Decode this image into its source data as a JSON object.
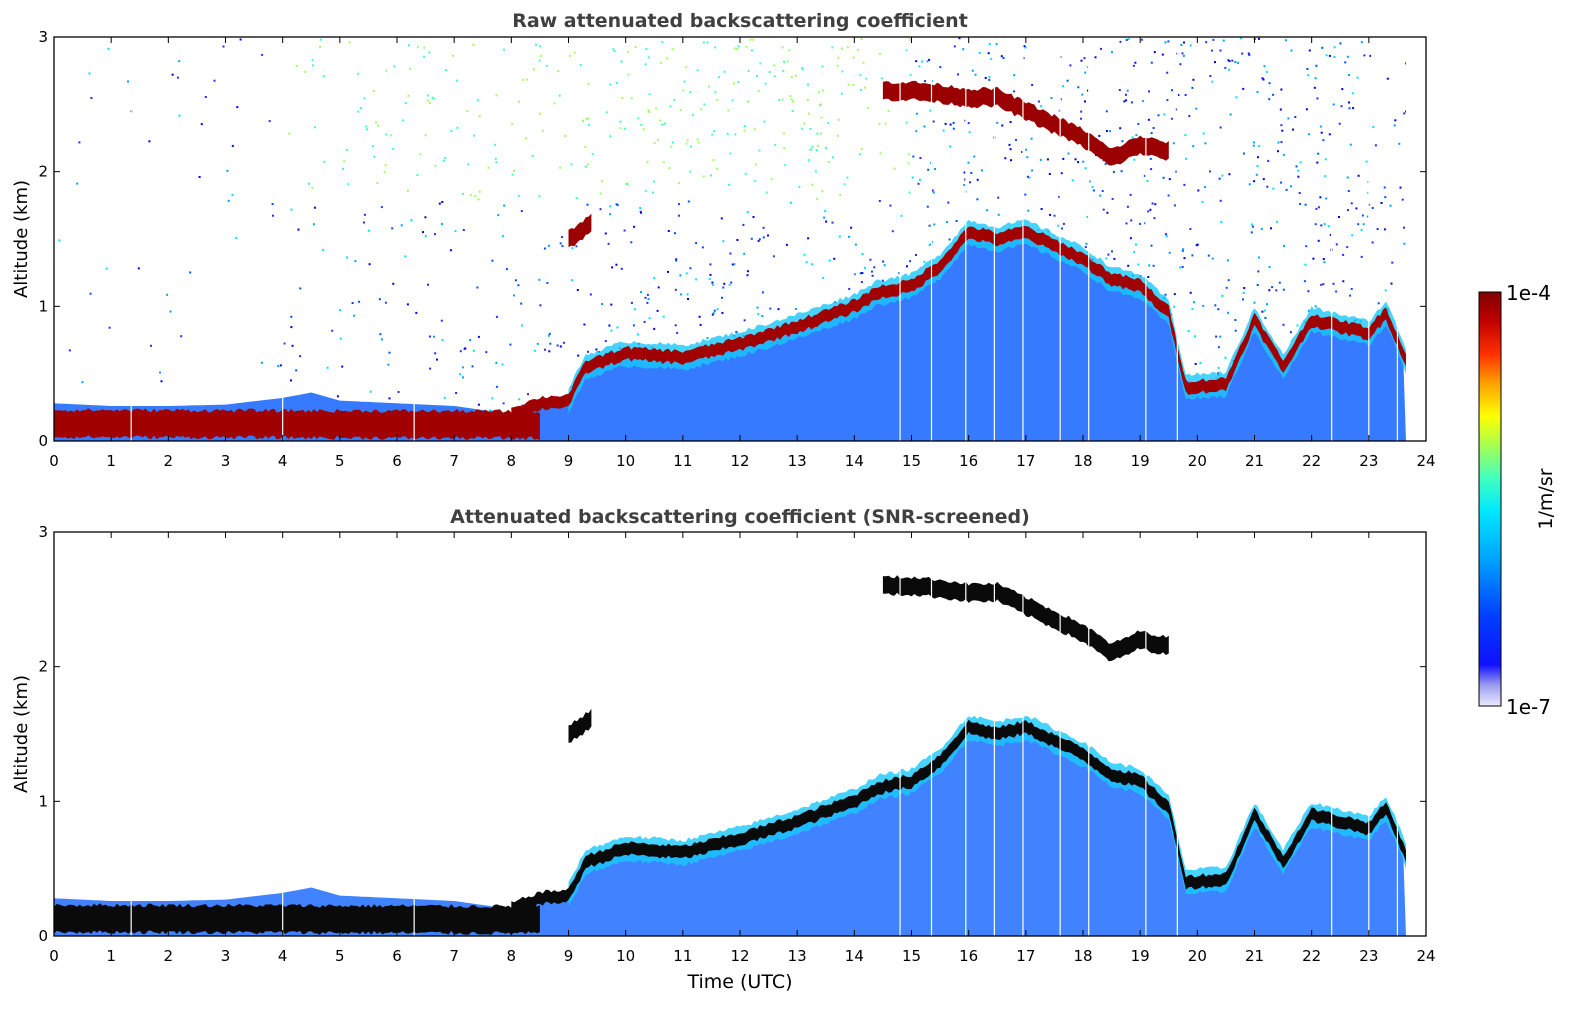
{
  "chart_data": [
    {
      "type": "heatmap",
      "title": "Raw attenuated backscattering coefficient",
      "xlabel": "",
      "ylabel": "Altitude (km)",
      "xlim": [
        0,
        24
      ],
      "ylim": [
        0,
        3
      ],
      "xticks": [
        "0",
        "1",
        "2",
        "3",
        "4",
        "5",
        "6",
        "7",
        "8",
        "9",
        "10",
        "11",
        "12",
        "13",
        "14",
        "15",
        "16",
        "17",
        "18",
        "19",
        "20",
        "21",
        "22",
        "23",
        "24"
      ],
      "yticks": [
        "0",
        "1",
        "2",
        "3"
      ],
      "data_end_hour": 23.65,
      "boundary_layer_top_km": [
        [
          0,
          0.28
        ],
        [
          1,
          0.26
        ],
        [
          2,
          0.26
        ],
        [
          3,
          0.27
        ],
        [
          4,
          0.32
        ],
        [
          4.5,
          0.36
        ],
        [
          5,
          0.3
        ],
        [
          6,
          0.28
        ],
        [
          7,
          0.26
        ],
        [
          8,
          0.2
        ],
        [
          8.5,
          0.28
        ],
        [
          9,
          0.3
        ],
        [
          9.3,
          0.55
        ],
        [
          10,
          0.65
        ],
        [
          11,
          0.62
        ],
        [
          12,
          0.72
        ],
        [
          13,
          0.85
        ],
        [
          14,
          1.0
        ],
        [
          14.4,
          1.1
        ],
        [
          15,
          1.15
        ],
        [
          15.5,
          1.3
        ],
        [
          16,
          1.55
        ],
        [
          16.5,
          1.5
        ],
        [
          17,
          1.55
        ],
        [
          17.5,
          1.45
        ],
        [
          18,
          1.35
        ],
        [
          18.5,
          1.2
        ],
        [
          19,
          1.15
        ],
        [
          19.5,
          0.95
        ],
        [
          19.8,
          0.4
        ],
        [
          20.5,
          0.42
        ],
        [
          21,
          0.9
        ],
        [
          21.5,
          0.55
        ],
        [
          22,
          0.9
        ],
        [
          22.5,
          0.85
        ],
        [
          23,
          0.8
        ],
        [
          23.3,
          0.95
        ],
        [
          23.65,
          0.6
        ]
      ],
      "cloud_layers_km": [
        [
          [
            9.0,
            1.5
          ],
          [
            9.2,
            1.55
          ],
          [
            9.4,
            1.62
          ]
        ],
        [
          [
            14.5,
            2.6
          ],
          [
            15,
            2.6
          ],
          [
            15.5,
            2.58
          ],
          [
            16,
            2.55
          ],
          [
            16.5,
            2.55
          ],
          [
            17,
            2.45
          ],
          [
            17.5,
            2.35
          ],
          [
            18,
            2.25
          ],
          [
            18.5,
            2.1
          ],
          [
            19,
            2.2
          ],
          [
            19.5,
            2.15
          ]
        ]
      ]
    },
    {
      "type": "heatmap",
      "title": "Attenuated backscattering coefficient (SNR-screened)",
      "xlabel": "Time (UTC)",
      "ylabel": "Altitude (km)",
      "xlim": [
        0,
        24
      ],
      "ylim": [
        0,
        3
      ],
      "xticks": [
        "0",
        "1",
        "2",
        "3",
        "4",
        "5",
        "6",
        "7",
        "8",
        "9",
        "10",
        "11",
        "12",
        "13",
        "14",
        "15",
        "16",
        "17",
        "18",
        "19",
        "20",
        "21",
        "22",
        "23",
        "24"
      ],
      "yticks": [
        "0",
        "1",
        "2",
        "3"
      ],
      "data_end_hour": 23.65
    }
  ],
  "colorbar": {
    "max_label": "1e-4",
    "min_label": "1e-7",
    "label": "1/m/sr",
    "colors": [
      "#e6e6f5",
      "#9c9cf0",
      "#2828ff",
      "#0000e6",
      "#0050ff",
      "#00a0ff",
      "#00e0ff",
      "#40ffc0",
      "#a0ff60",
      "#ffff00",
      "#ffb000",
      "#ff5000",
      "#e60000",
      "#a00000",
      "#800000"
    ]
  }
}
